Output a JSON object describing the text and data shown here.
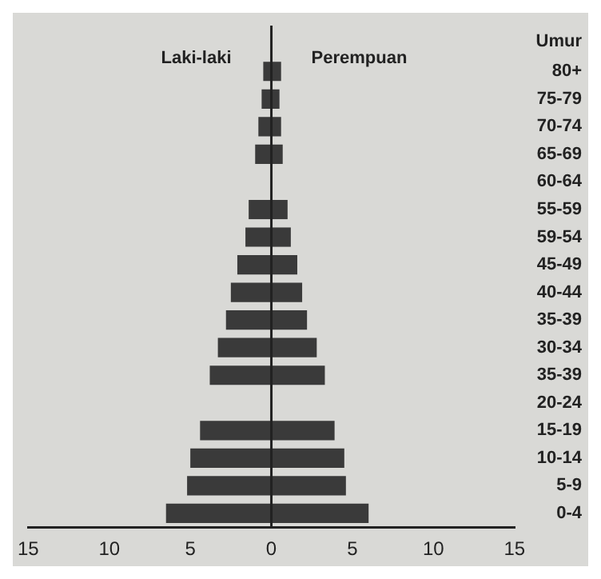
{
  "chart_data": {
    "type": "bar",
    "orientation": "horizontal",
    "stacked": true,
    "ylabel": "Umur",
    "categories": [
      "80+",
      "75-79",
      "70-74",
      "65-69",
      "60-64",
      "55-59",
      "59-54",
      "45-49",
      "40-44",
      "35-39",
      "30-34",
      "35-39",
      "20-24",
      "15-19",
      "10-14",
      "5-9",
      "0-4"
    ],
    "series": [
      {
        "name": "Laki-laki",
        "color": "#3a3a3a",
        "values": [
          -0.5,
          -0.6,
          -0.8,
          -1.0,
          null,
          -1.4,
          -1.6,
          -2.1,
          -2.5,
          -2.8,
          -3.3,
          -3.8,
          null,
          -4.4,
          -5.0,
          -5.2,
          -6.5
        ]
      },
      {
        "name": "Perempuan",
        "color": "#3a3a3a",
        "values": [
          0.6,
          0.5,
          0.6,
          0.7,
          null,
          1.0,
          1.2,
          1.6,
          1.9,
          2.2,
          2.8,
          3.3,
          null,
          3.9,
          4.5,
          4.6,
          6.0
        ]
      }
    ],
    "xlim": [
      -15,
      15
    ],
    "xticks": [
      {
        "value": -15,
        "label": "15"
      },
      {
        "value": -10,
        "label": "10"
      },
      {
        "value": -5,
        "label": "5"
      },
      0,
      5,
      10,
      15
    ],
    "ref_lines": [
      {
        "axis": "x",
        "value": 0
      }
    ],
    "grid": false,
    "legend": false
  }
}
